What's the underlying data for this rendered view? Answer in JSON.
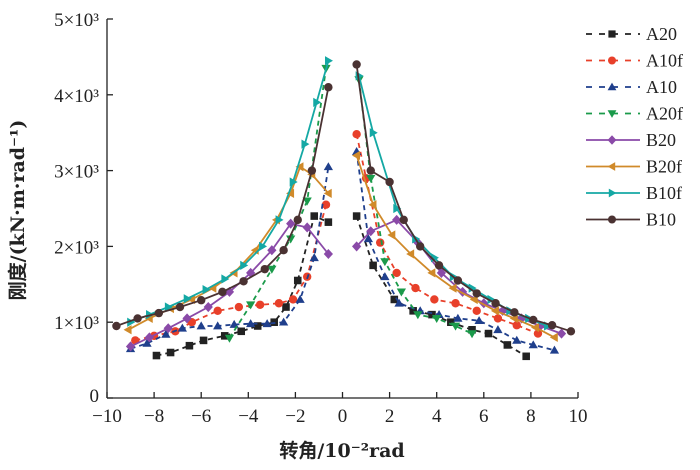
{
  "chart_data": {
    "type": "line",
    "title": "",
    "xlabel": "转角/10⁻²rad",
    "ylabel": "刚度/(kN·m·rad⁻¹)",
    "xlim": [
      -10,
      10
    ],
    "ylim": [
      0,
      5000
    ],
    "xticks": [
      "−10",
      "−8",
      "−6",
      "−4",
      "−2",
      "0",
      "2",
      "4",
      "6",
      "8",
      "10"
    ],
    "yticks": [
      "0",
      "1×10³",
      "2×10³",
      "3×10³",
      "4×10³",
      "5×10³"
    ],
    "legend_position": "right",
    "grid": false,
    "series": [
      {
        "name": "A20",
        "color": "#222222",
        "dash": true,
        "marker": "square",
        "neg": [
          [
            -7.9,
            560
          ],
          [
            -7.3,
            600
          ],
          [
            -6.5,
            690
          ],
          [
            -5.9,
            760
          ],
          [
            -5.0,
            820
          ],
          [
            -4.3,
            880
          ],
          [
            -3.6,
            950
          ],
          [
            -2.9,
            1000
          ],
          [
            -2.4,
            1200
          ],
          [
            -1.9,
            1550
          ],
          [
            -1.2,
            2400
          ],
          [
            -0.6,
            2320
          ]
        ],
        "pos": [
          [
            0.6,
            2400
          ],
          [
            1.3,
            1750
          ],
          [
            2.2,
            1300
          ],
          [
            3.0,
            1150
          ],
          [
            3.8,
            1100
          ],
          [
            4.6,
            1000
          ],
          [
            5.5,
            900
          ],
          [
            6.2,
            850
          ],
          [
            7.0,
            700
          ],
          [
            7.8,
            550
          ]
        ]
      },
      {
        "name": "A10f",
        "color": "#e8402a",
        "dash": true,
        "marker": "circle",
        "neg": [
          [
            -8.8,
            760
          ],
          [
            -8.0,
            820
          ],
          [
            -7.1,
            880
          ],
          [
            -6.4,
            1000
          ],
          [
            -5.3,
            1150
          ],
          [
            -4.4,
            1200
          ],
          [
            -3.5,
            1230
          ],
          [
            -2.7,
            1250
          ],
          [
            -2.1,
            1300
          ],
          [
            -1.5,
            1600
          ],
          [
            -0.7,
            2550
          ]
        ],
        "pos": [
          [
            0.6,
            3480
          ],
          [
            1.0,
            2900
          ],
          [
            1.6,
            2050
          ],
          [
            2.3,
            1650
          ],
          [
            3.1,
            1450
          ],
          [
            3.9,
            1300
          ],
          [
            4.8,
            1250
          ],
          [
            5.7,
            1150
          ],
          [
            6.6,
            1050
          ],
          [
            7.4,
            960
          ],
          [
            8.3,
            850
          ]
        ]
      },
      {
        "name": "A10",
        "color": "#1f3f8c",
        "dash": true,
        "marker": "triangle-up",
        "neg": [
          [
            -9.0,
            650
          ],
          [
            -8.3,
            720
          ],
          [
            -7.5,
            840
          ],
          [
            -6.8,
            920
          ],
          [
            -6.0,
            950
          ],
          [
            -5.3,
            950
          ],
          [
            -4.6,
            970
          ],
          [
            -3.9,
            980
          ],
          [
            -3.2,
            980
          ],
          [
            -2.5,
            1000
          ],
          [
            -1.8,
            1300
          ],
          [
            -1.2,
            1850
          ],
          [
            -0.6,
            3050
          ]
        ],
        "pos": [
          [
            0.6,
            3250
          ],
          [
            1.1,
            2100
          ],
          [
            1.8,
            1600
          ],
          [
            2.4,
            1250
          ],
          [
            3.3,
            1150
          ],
          [
            4.1,
            1100
          ],
          [
            4.9,
            1050
          ],
          [
            5.8,
            1020
          ],
          [
            6.6,
            900
          ],
          [
            7.4,
            760
          ],
          [
            8.1,
            700
          ],
          [
            9.0,
            630
          ]
        ]
      },
      {
        "name": "A20f",
        "color": "#1a9a4a",
        "dash": true,
        "marker": "triangle-down",
        "neg": [
          [
            -4.8,
            790
          ],
          [
            -3.9,
            1230
          ],
          [
            -3.0,
            1700
          ],
          [
            -2.2,
            2100
          ],
          [
            -1.5,
            2600
          ],
          [
            -0.7,
            4350
          ]
        ],
        "pos": [
          [
            0.7,
            4200
          ],
          [
            1.2,
            2900
          ],
          [
            1.8,
            1800
          ],
          [
            2.5,
            1400
          ],
          [
            3.2,
            1100
          ],
          [
            4.0,
            1050
          ],
          [
            4.8,
            950
          ],
          [
            5.5,
            850
          ]
        ]
      },
      {
        "name": "B20",
        "color": "#8a4aa8",
        "dash": false,
        "marker": "diamond",
        "neg": [
          [
            -9.0,
            680
          ],
          [
            -8.2,
            800
          ],
          [
            -7.4,
            920
          ],
          [
            -6.6,
            1050
          ],
          [
            -5.7,
            1200
          ],
          [
            -4.8,
            1400
          ],
          [
            -3.9,
            1650
          ],
          [
            -3.0,
            1950
          ],
          [
            -2.2,
            2300
          ],
          [
            -1.5,
            2250
          ],
          [
            -0.6,
            1900
          ]
        ],
        "pos": [
          [
            0.6,
            2000
          ],
          [
            1.2,
            2200
          ],
          [
            2.3,
            2350
          ],
          [
            3.2,
            2050
          ],
          [
            4.2,
            1650
          ],
          [
            5.1,
            1400
          ],
          [
            6.0,
            1250
          ],
          [
            6.8,
            1150
          ],
          [
            7.6,
            1050
          ],
          [
            8.4,
            950
          ],
          [
            9.3,
            850
          ]
        ]
      },
      {
        "name": "B20f",
        "color": "#d08a2a",
        "dash": false,
        "marker": "triangle-left",
        "neg": [
          [
            -9.1,
            900
          ],
          [
            -8.2,
            1050
          ],
          [
            -7.3,
            1180
          ],
          [
            -6.4,
            1300
          ],
          [
            -5.5,
            1450
          ],
          [
            -4.6,
            1650
          ],
          [
            -3.7,
            1950
          ],
          [
            -2.8,
            2350
          ],
          [
            -2.2,
            2700
          ],
          [
            -1.8,
            3050
          ],
          [
            -1.3,
            2950
          ],
          [
            -0.6,
            2700
          ]
        ],
        "pos": [
          [
            0.6,
            3200
          ],
          [
            1.3,
            2550
          ],
          [
            2.1,
            2150
          ],
          [
            2.9,
            1900
          ],
          [
            3.8,
            1650
          ],
          [
            4.7,
            1450
          ],
          [
            5.6,
            1300
          ],
          [
            6.5,
            1150
          ],
          [
            7.3,
            1050
          ],
          [
            8.2,
            930
          ],
          [
            9.0,
            800
          ]
        ]
      },
      {
        "name": "B10f",
        "color": "#14a8a4",
        "dash": false,
        "marker": "triangle-right",
        "neg": [
          [
            -9.0,
            1000
          ],
          [
            -8.2,
            1100
          ],
          [
            -7.4,
            1200
          ],
          [
            -6.6,
            1310
          ],
          [
            -5.8,
            1430
          ],
          [
            -5.0,
            1570
          ],
          [
            -4.2,
            1750
          ],
          [
            -3.4,
            2000
          ],
          [
            -2.7,
            2350
          ],
          [
            -2.1,
            2850
          ],
          [
            -1.6,
            3350
          ],
          [
            -1.1,
            3900
          ],
          [
            -0.6,
            4450
          ]
        ],
        "pos": [
          [
            0.7,
            4250
          ],
          [
            1.3,
            3500
          ],
          [
            2.3,
            2500
          ],
          [
            3.1,
            2100
          ],
          [
            3.9,
            1850
          ],
          [
            4.7,
            1600
          ],
          [
            5.5,
            1450
          ],
          [
            6.3,
            1300
          ],
          [
            7.1,
            1150
          ],
          [
            7.9,
            1050
          ],
          [
            8.7,
            950
          ]
        ]
      },
      {
        "name": "B10",
        "color": "#4a3232",
        "dash": false,
        "marker": "circle",
        "neg": [
          [
            -9.6,
            950
          ],
          [
            -8.7,
            1050
          ],
          [
            -7.8,
            1120
          ],
          [
            -6.9,
            1200
          ],
          [
            -6.0,
            1290
          ],
          [
            -5.1,
            1400
          ],
          [
            -4.2,
            1540
          ],
          [
            -3.3,
            1700
          ],
          [
            -2.5,
            1950
          ],
          [
            -1.9,
            2350
          ],
          [
            -1.3,
            3000
          ],
          [
            -0.6,
            4100
          ]
        ],
        "pos": [
          [
            0.6,
            4400
          ],
          [
            1.2,
            3000
          ],
          [
            2.0,
            2850
          ],
          [
            2.6,
            2350
          ],
          [
            3.3,
            2000
          ],
          [
            4.1,
            1750
          ],
          [
            4.9,
            1550
          ],
          [
            5.7,
            1380
          ],
          [
            6.5,
            1250
          ],
          [
            7.3,
            1130
          ],
          [
            8.1,
            1030
          ],
          [
            8.9,
            960
          ],
          [
            9.7,
            880
          ]
        ]
      }
    ]
  }
}
